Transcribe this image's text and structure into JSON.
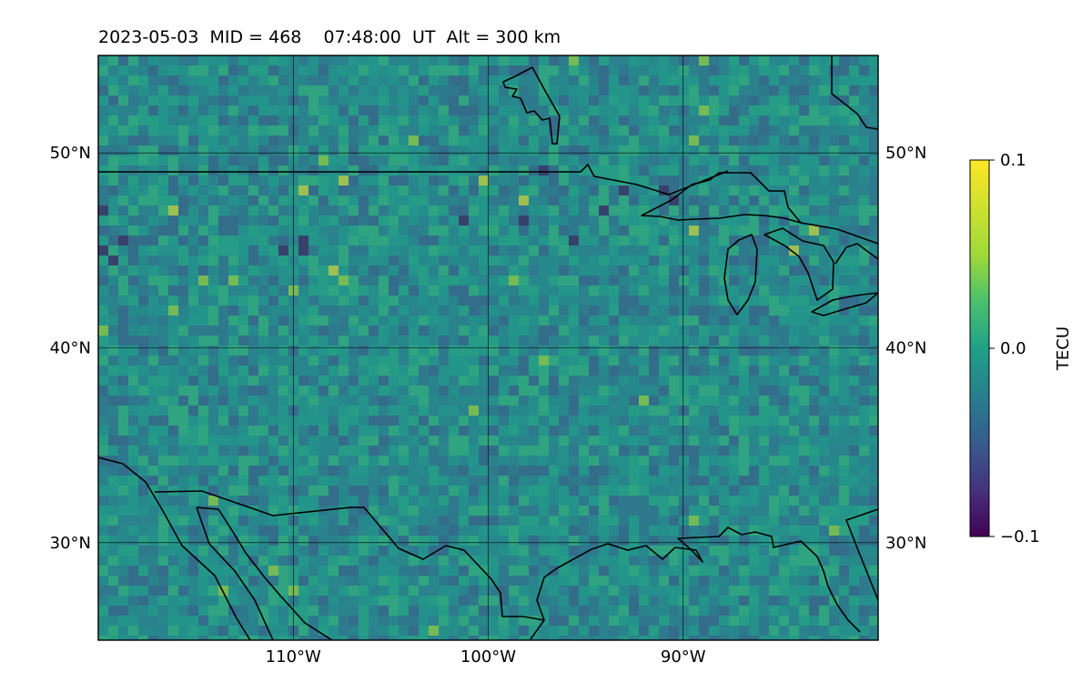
{
  "title": "2023-05-03  MID = 468    07:48:00  UT  Alt = 300 km",
  "map": {
    "lon_range": [
      -120,
      -80
    ],
    "lat_range": [
      25,
      55
    ],
    "grid": true,
    "colormap": "viridis",
    "lat_ticks": [
      {
        "value": 50,
        "label": "50°N"
      },
      {
        "value": 40,
        "label": "40°N"
      },
      {
        "value": 30,
        "label": "30°N"
      }
    ],
    "lon_ticks": [
      {
        "value": -110,
        "label": "110°W"
      },
      {
        "value": -100,
        "label": "100°W"
      },
      {
        "value": -90,
        "label": "90°W"
      }
    ]
  },
  "colorbar": {
    "label": "TECU",
    "vmin": -0.1,
    "vmax": 0.1,
    "ticks": [
      {
        "value": 0.1,
        "label": "0.1"
      },
      {
        "value": 0.0,
        "label": "0.0"
      },
      {
        "value": -0.1,
        "label": "−0.1"
      }
    ]
  },
  "colors": {
    "base": "#2c8e8a",
    "low": "#440154",
    "high": "#fde725"
  }
}
